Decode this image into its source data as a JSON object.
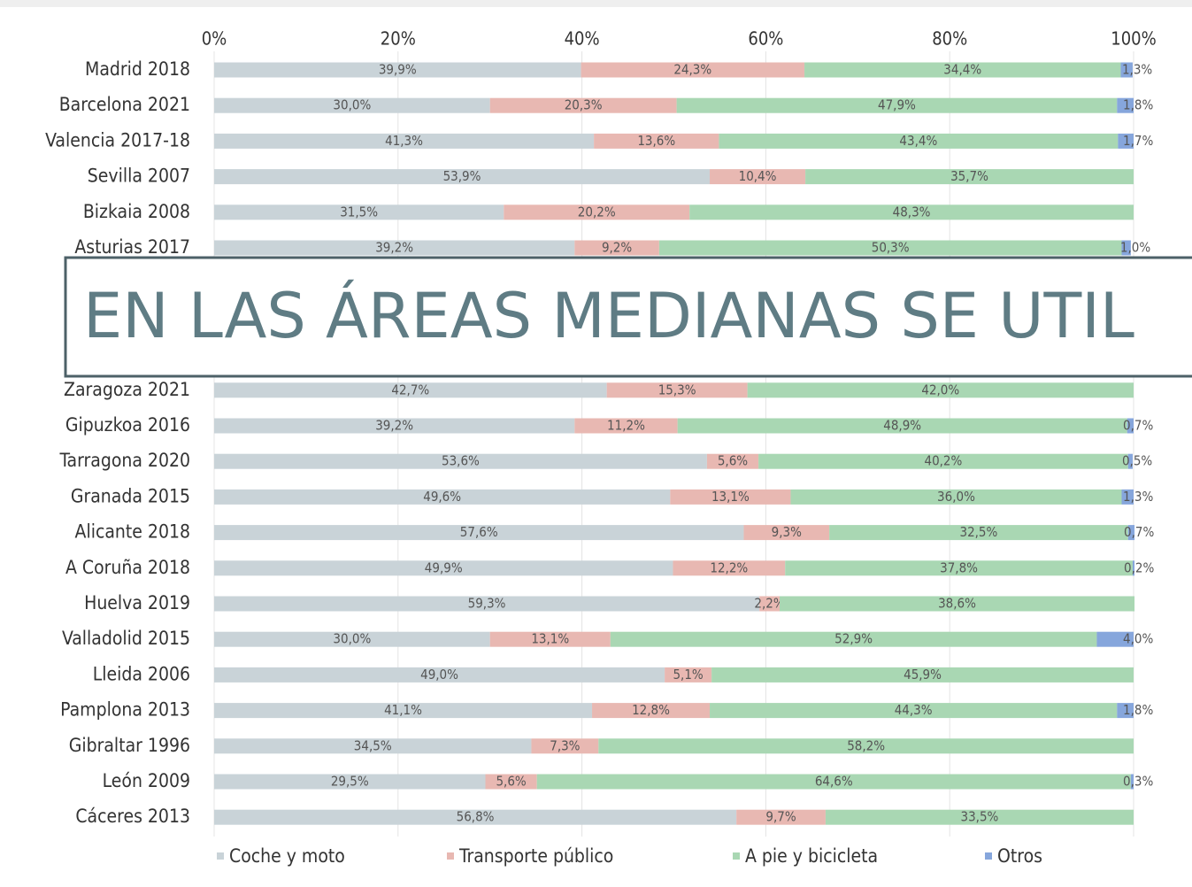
{
  "chart_data": {
    "type": "stacked_barh",
    "banner": "EN LAS ÁREAS MEDIANAS SE UTIL",
    "categories": [
      "Madrid 2018",
      "Barcelona 2021",
      "Valencia 2017-18",
      "Sevilla 2007",
      "Bizkaia 2008",
      "Asturias 2017",
      null,
      null,
      null,
      "Zaragoza 2021",
      "Gipuzkoa 2016",
      "Tarragona 2020",
      "Granada 2015",
      "Alicante 2018",
      "A Coruña 2018",
      "Huelva 2019",
      "Valladolid 2015",
      "Lleida 2006",
      "Pamplona 2013",
      "Gibraltar 1996",
      "León 2009",
      "Cáceres 2013"
    ],
    "series": [
      {
        "name": "Coche y moto",
        "color": "#c9d3d8",
        "values": [
          39.9,
          30.0,
          41.3,
          53.9,
          31.5,
          39.2,
          null,
          null,
          null,
          42.7,
          39.2,
          53.6,
          49.6,
          57.6,
          49.9,
          59.3,
          30.0,
          49.0,
          41.1,
          34.5,
          29.5,
          56.8
        ],
        "value_labels": [
          "39,9%",
          "30,0%",
          "41,3%",
          "53,9%",
          "31,5%",
          "39,2%",
          null,
          null,
          null,
          "42,7%",
          "39,2%",
          "53,6%",
          "49,6%",
          "57,6%",
          "49,9%",
          "59,3%",
          "30,0%",
          "49,0%",
          "41,1%",
          "34,5%",
          "29,5%",
          "56,8%"
        ]
      },
      {
        "name": "Transporte público",
        "color": "#e8b8b2",
        "values": [
          24.3,
          20.3,
          13.6,
          10.4,
          20.2,
          9.2,
          null,
          null,
          null,
          15.3,
          11.2,
          5.6,
          13.1,
          9.3,
          12.2,
          2.2,
          13.1,
          5.1,
          12.8,
          7.3,
          5.6,
          9.7
        ],
        "value_labels": [
          "24,3%",
          "20,3%",
          "13,6%",
          "10,4%",
          "20,2%",
          "9,2%",
          null,
          null,
          null,
          "15,3%",
          "11,2%",
          "5,6%",
          "13,1%",
          "9,3%",
          "12,2%",
          "2,2%",
          "13,1%",
          "5,1%",
          "12,8%",
          "7,3%",
          "5,6%",
          "9,7%"
        ]
      },
      {
        "name": "A pie y bicicleta",
        "color": "#a9d7b3",
        "values": [
          34.4,
          47.9,
          43.4,
          35.7,
          48.3,
          50.3,
          null,
          null,
          null,
          42.0,
          48.9,
          40.2,
          36.0,
          32.5,
          37.8,
          38.6,
          52.9,
          45.9,
          44.3,
          58.2,
          64.6,
          33.5
        ],
        "value_labels": [
          "34,4%",
          "47,9%",
          "43,4%",
          "35,7%",
          "48,3%",
          "50,3%",
          null,
          null,
          null,
          "42,0%",
          "48,9%",
          "40,2%",
          "36,0%",
          "32,5%",
          "37,8%",
          "38,6%",
          "52,9%",
          "45,9%",
          "44,3%",
          "58,2%",
          "64,6%",
          "33,5%"
        ]
      },
      {
        "name": "Otros",
        "color": "#86a6dc",
        "values": [
          1.3,
          1.8,
          1.7,
          null,
          null,
          1.0,
          null,
          null,
          null,
          null,
          0.7,
          0.5,
          1.3,
          0.7,
          0.2,
          null,
          4.0,
          null,
          1.8,
          null,
          0.3,
          null
        ],
        "value_labels": [
          "1,3%",
          "1,8%",
          "1,7%",
          null,
          null,
          "1,0%",
          null,
          null,
          null,
          null,
          "0,7%",
          "0,5%",
          "1,3%",
          "0,7%",
          "0,2%",
          null,
          "4,0%",
          null,
          "1,8%",
          null,
          "0,3%",
          null
        ]
      }
    ],
    "xlim": [
      0,
      100
    ],
    "xticks": [
      {
        "value": 0,
        "label": "0%"
      },
      {
        "value": 20,
        "label": "20%"
      },
      {
        "value": 40,
        "label": "40%"
      },
      {
        "value": 60,
        "label": "60%"
      },
      {
        "value": 80,
        "label": "80%"
      },
      {
        "value": 100,
        "label": "100%"
      }
    ],
    "grid": true
  }
}
